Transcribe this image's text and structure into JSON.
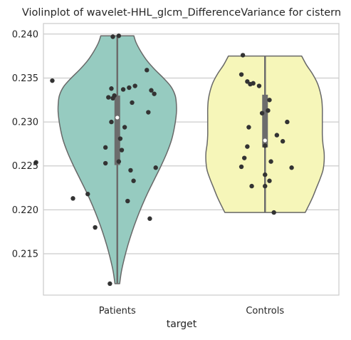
{
  "chart_data": {
    "type": "violin",
    "title": "Violinplot of wavelet-HHL_glcm_DifferenceVariance for cistern",
    "xlabel": "target",
    "ylabel": "",
    "categories": [
      "Patients",
      "Controls"
    ],
    "ylim": [
      0.2103,
      0.2412
    ],
    "yticks": [
      0.215,
      0.22,
      0.225,
      0.23,
      0.235,
      0.24
    ],
    "ytick_labels": [
      "0.215",
      "0.220",
      "0.225",
      "0.230",
      "0.235",
      "0.240"
    ],
    "grid": "horizontal",
    "colors": {
      "Patients": "#96cbc0",
      "Controls": "#f6f6b9",
      "outline": "#686868",
      "box": "#6c6c6c",
      "points": "#333333",
      "grid": "#cccccc",
      "axes": "#cccccc"
    },
    "series": [
      {
        "category": "Patients",
        "range": [
          0.2116,
          0.2398
        ],
        "quartiles": [
          0.2251,
          0.2305,
          0.233
        ],
        "whiskers": [
          0.2116,
          0.2398
        ],
        "density": [
          [
            0.2116,
            0.04
          ],
          [
            0.213,
            0.07
          ],
          [
            0.2145,
            0.12
          ],
          [
            0.216,
            0.18
          ],
          [
            0.2175,
            0.25
          ],
          [
            0.219,
            0.33
          ],
          [
            0.2205,
            0.42
          ],
          [
            0.222,
            0.52
          ],
          [
            0.2235,
            0.63
          ],
          [
            0.225,
            0.74
          ],
          [
            0.2265,
            0.84
          ],
          [
            0.228,
            0.92
          ],
          [
            0.2295,
            0.97
          ],
          [
            0.231,
            1.0
          ],
          [
            0.232,
            1.0
          ],
          [
            0.233,
            0.98
          ],
          [
            0.234,
            0.91
          ],
          [
            0.235,
            0.78
          ],
          [
            0.236,
            0.63
          ],
          [
            0.237,
            0.5
          ],
          [
            0.238,
            0.4
          ],
          [
            0.239,
            0.32
          ],
          [
            0.2398,
            0.28
          ]
        ],
        "points": [
          [
            0.01,
            0.2398
          ],
          [
            -0.03,
            0.2397
          ],
          [
            0.2,
            0.2359
          ],
          [
            -0.44,
            0.2347
          ],
          [
            0.12,
            0.2341
          ],
          [
            0.08,
            0.2339
          ],
          [
            -0.04,
            0.2338
          ],
          [
            0.04,
            0.2337
          ],
          [
            0.23,
            0.2336
          ],
          [
            0.25,
            0.2332
          ],
          [
            -0.02,
            0.233
          ],
          [
            -0.06,
            0.2328
          ],
          [
            -0.03,
            0.2327
          ],
          [
            0.1,
            0.2322
          ],
          [
            0.21,
            0.2311
          ],
          [
            -0.04,
            0.23
          ],
          [
            0.05,
            0.2294
          ],
          [
            0.02,
            0.2281
          ],
          [
            -0.08,
            0.2271
          ],
          [
            0.03,
            0.2268
          ],
          [
            0.01,
            0.2255
          ],
          [
            -0.08,
            0.2253
          ],
          [
            -0.55,
            0.2254
          ],
          [
            0.26,
            0.2248
          ],
          [
            0.09,
            0.2245
          ],
          [
            0.11,
            0.2233
          ],
          [
            -0.2,
            0.2218
          ],
          [
            -0.3,
            0.2213
          ],
          [
            0.07,
            0.221
          ],
          [
            0.22,
            0.219
          ],
          [
            -0.15,
            0.218
          ],
          [
            -0.05,
            0.2116
          ]
        ]
      },
      {
        "category": "Controls",
        "range": [
          0.2197,
          0.2375
        ],
        "quartiles": [
          0.2271,
          0.2279,
          0.2331
        ],
        "whiskers": [
          0.2197,
          0.2375
        ],
        "density": [
          [
            0.2197,
            0.68
          ],
          [
            0.2205,
            0.74
          ],
          [
            0.2215,
            0.81
          ],
          [
            0.2225,
            0.87
          ],
          [
            0.2235,
            0.93
          ],
          [
            0.2245,
            0.98
          ],
          [
            0.2255,
            1.0
          ],
          [
            0.2265,
            1.0
          ],
          [
            0.2275,
            0.98
          ],
          [
            0.2285,
            0.97
          ],
          [
            0.2295,
            0.97
          ],
          [
            0.2305,
            0.97
          ],
          [
            0.2315,
            0.97
          ],
          [
            0.2325,
            0.96
          ],
          [
            0.2335,
            0.93
          ],
          [
            0.2345,
            0.88
          ],
          [
            0.2355,
            0.8
          ],
          [
            0.2365,
            0.7
          ],
          [
            0.2375,
            0.62
          ]
        ],
        "points": [
          [
            -0.15,
            0.2376
          ],
          [
            -0.16,
            0.2354
          ],
          [
            -0.12,
            0.2346
          ],
          [
            -0.08,
            0.2344
          ],
          [
            -0.1,
            0.2343
          ],
          [
            -0.04,
            0.2341
          ],
          [
            0.03,
            0.2325
          ],
          [
            0.02,
            0.2313
          ],
          [
            -0.02,
            0.231
          ],
          [
            0.15,
            0.23
          ],
          [
            -0.11,
            0.2294
          ],
          [
            0.08,
            0.2285
          ],
          [
            0.12,
            0.2278
          ],
          [
            0.0,
            0.2273
          ],
          [
            -0.12,
            0.2272
          ],
          [
            -0.14,
            0.2259
          ],
          [
            0.04,
            0.2255
          ],
          [
            -0.16,
            0.2249
          ],
          [
            0.18,
            0.2248
          ],
          [
            0.0,
            0.224
          ],
          [
            0.03,
            0.2233
          ],
          [
            -0.09,
            0.2227
          ],
          [
            0.0,
            0.2227
          ],
          [
            0.06,
            0.2197
          ]
        ]
      }
    ]
  }
}
